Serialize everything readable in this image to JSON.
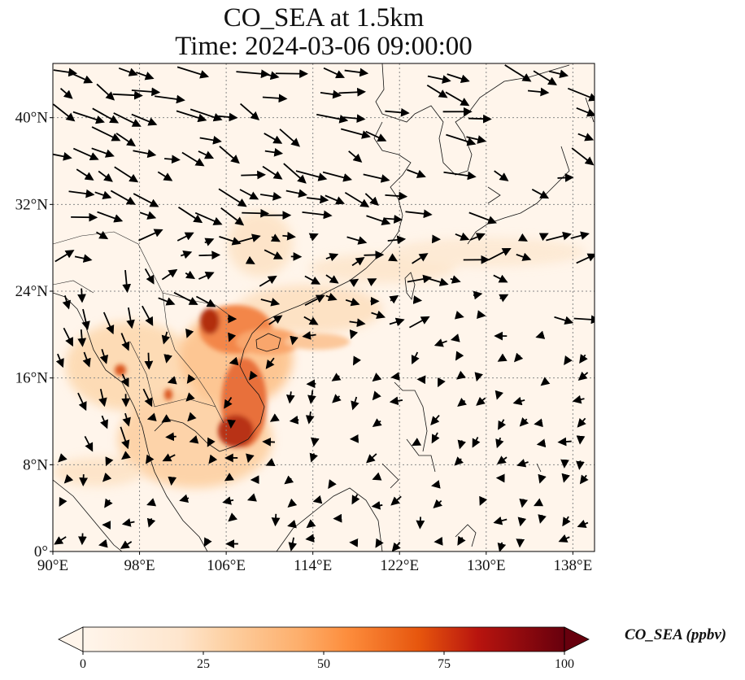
{
  "title_line1": "CO_SEA at 1.5km",
  "title_line2": "Time: 2024-03-06 09:00:00",
  "colorbar": {
    "label": "CO_SEA (ppbv)",
    "ticks": [
      "0",
      "25",
      "50",
      "75",
      "100"
    ],
    "min": 0,
    "max": 100,
    "extend": "both",
    "colors": [
      "#fff5eb",
      "#fdd0a2",
      "#fd8d3c",
      "#d94801",
      "#a50f15",
      "#67000d"
    ]
  },
  "map": {
    "lon_range": [
      90,
      140
    ],
    "lat_range": [
      0,
      45
    ],
    "lon_ticks": [
      {
        "value": 90,
        "label": "90°E"
      },
      {
        "value": 98,
        "label": "98°E"
      },
      {
        "value": 106,
        "label": "106°E"
      },
      {
        "value": 114,
        "label": "114°E"
      },
      {
        "value": 122,
        "label": "122°E"
      },
      {
        "value": 130,
        "label": "130°E"
      },
      {
        "value": 138,
        "label": "138°E"
      }
    ],
    "lat_ticks": [
      {
        "value": 0,
        "label": "0°"
      },
      {
        "value": 8,
        "label": "8°N"
      },
      {
        "value": 16,
        "label": "16°N"
      },
      {
        "value": 24,
        "label": "24°N"
      },
      {
        "value": 32,
        "label": "32°N"
      },
      {
        "value": 40,
        "label": "40°N"
      }
    ],
    "gridlines": true,
    "background_color": "#fff5eb"
  }
}
